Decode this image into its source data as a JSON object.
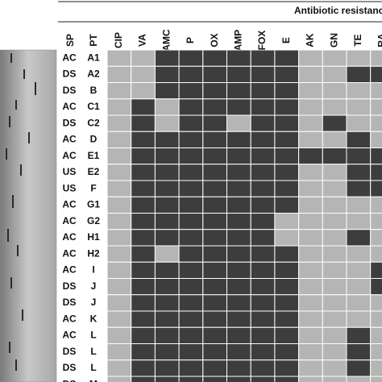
{
  "title": "Antibiotic resistance",
  "header": {
    "sp": "SP",
    "pt": "PT",
    "antibiotics": [
      "CIP",
      "VA",
      "AMC",
      "P",
      "OX",
      "AMP",
      "FOX",
      "E",
      "AK",
      "GN",
      "TE",
      "RA"
    ]
  },
  "resistant_color": "#3d3d3d",
  "susceptible_color": "#b5b5b5",
  "rows": [
    {
      "sp": "AC",
      "pt": "A1",
      "resistant": [
        0,
        0,
        1,
        1,
        1,
        1,
        1,
        1,
        0,
        0,
        0,
        0
      ]
    },
    {
      "sp": "DS",
      "pt": "A2",
      "resistant": [
        0,
        0,
        1,
        1,
        1,
        1,
        1,
        1,
        0,
        0,
        1,
        1
      ]
    },
    {
      "sp": "DS",
      "pt": "B",
      "resistant": [
        0,
        0,
        1,
        1,
        1,
        1,
        1,
        1,
        0,
        0,
        0,
        0
      ]
    },
    {
      "sp": "AC",
      "pt": "C1",
      "resistant": [
        0,
        1,
        0,
        1,
        1,
        1,
        1,
        1,
        0,
        0,
        0,
        0
      ]
    },
    {
      "sp": "DS",
      "pt": "C2",
      "resistant": [
        0,
        1,
        0,
        1,
        1,
        0,
        1,
        1,
        0,
        1,
        0,
        0
      ]
    },
    {
      "sp": "AC",
      "pt": "D",
      "resistant": [
        0,
        1,
        1,
        1,
        1,
        1,
        1,
        1,
        0,
        0,
        1,
        0
      ]
    },
    {
      "sp": "AC",
      "pt": "E1",
      "resistant": [
        0,
        1,
        1,
        1,
        1,
        1,
        1,
        1,
        1,
        1,
        1,
        1
      ]
    },
    {
      "sp": "US",
      "pt": "E2",
      "resistant": [
        0,
        1,
        1,
        1,
        1,
        1,
        1,
        1,
        0,
        0,
        1,
        1
      ]
    },
    {
      "sp": "US",
      "pt": "F",
      "resistant": [
        0,
        1,
        1,
        1,
        1,
        1,
        1,
        1,
        0,
        0,
        1,
        1
      ]
    },
    {
      "sp": "AC",
      "pt": "G1",
      "resistant": [
        0,
        1,
        1,
        1,
        1,
        1,
        1,
        1,
        0,
        0,
        0,
        0
      ]
    },
    {
      "sp": "AC",
      "pt": "G2",
      "resistant": [
        0,
        1,
        1,
        1,
        1,
        1,
        1,
        0,
        0,
        0,
        0,
        0
      ]
    },
    {
      "sp": "AC",
      "pt": "H1",
      "resistant": [
        0,
        1,
        1,
        1,
        1,
        1,
        1,
        0,
        0,
        0,
        1,
        0
      ]
    },
    {
      "sp": "AC",
      "pt": "H2",
      "resistant": [
        0,
        1,
        0,
        1,
        1,
        1,
        1,
        1,
        0,
        0,
        0,
        0
      ]
    },
    {
      "sp": "AC",
      "pt": "I",
      "resistant": [
        0,
        1,
        1,
        1,
        1,
        1,
        1,
        1,
        0,
        0,
        0,
        1
      ]
    },
    {
      "sp": "DS",
      "pt": "J",
      "resistant": [
        0,
        1,
        1,
        1,
        1,
        1,
        1,
        1,
        0,
        0,
        0,
        1
      ]
    },
    {
      "sp": "DS",
      "pt": "J",
      "resistant": [
        0,
        1,
        1,
        1,
        1,
        1,
        1,
        1,
        0,
        0,
        0,
        0
      ]
    },
    {
      "sp": "AC",
      "pt": "K",
      "resistant": [
        0,
        1,
        1,
        1,
        1,
        1,
        1,
        1,
        0,
        0,
        0,
        0
      ]
    },
    {
      "sp": "AC",
      "pt": "L",
      "resistant": [
        0,
        1,
        1,
        1,
        1,
        1,
        1,
        1,
        0,
        0,
        1,
        0
      ]
    },
    {
      "sp": "DS",
      "pt": "L",
      "resistant": [
        0,
        1,
        1,
        1,
        1,
        1,
        1,
        1,
        0,
        0,
        1,
        0
      ]
    },
    {
      "sp": "DS",
      "pt": "L",
      "resistant": [
        0,
        1,
        1,
        1,
        1,
        1,
        1,
        1,
        0,
        0,
        1,
        0
      ]
    },
    {
      "sp": "DS",
      "pt": "M",
      "resistant": [
        0,
        1,
        1,
        1,
        1,
        1,
        1,
        1,
        0,
        0,
        0,
        0
      ]
    }
  ]
}
